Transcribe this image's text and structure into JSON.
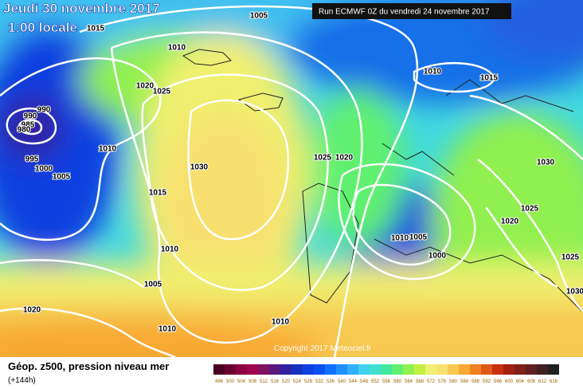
{
  "header": {
    "date": "Jeudi 30 novembre 2017",
    "time": "1:00 locale",
    "run": "Run ECMWF 0Z du vendredi 24 novembre 2017"
  },
  "footer": {
    "title": "Géop. z500, pression niveau mer",
    "lead": "(+144h)",
    "copyright": "Copyright 2017 Meteociel.fr"
  },
  "isobar_labels": [
    1005,
    1015,
    1010,
    1010,
    1015,
    1020,
    1025,
    990,
    990,
    985,
    980,
    995,
    1010,
    1000,
    1005,
    1030,
    1025,
    1020,
    1015,
    1030,
    1025,
    1020,
    1010,
    1005,
    1000,
    1025,
    1010,
    1005,
    1020,
    1010,
    1010,
    1030
  ],
  "legend": {
    "labels": [
      496,
      500,
      504,
      508,
      512,
      516,
      520,
      524,
      528,
      532,
      536,
      540,
      544,
      548,
      552,
      556,
      560,
      564,
      568,
      572,
      576,
      580,
      584,
      588,
      592,
      596,
      600,
      604,
      608,
      612,
      616
    ],
    "colors": [
      "#4a0020",
      "#6a0030",
      "#8a0040",
      "#a00050",
      "#801060",
      "#5a1880",
      "#3020a0",
      "#1830c0",
      "#1040e0",
      "#0a50f0",
      "#1070ff",
      "#2090ff",
      "#30b0ff",
      "#40d0f0",
      "#40e0d0",
      "#40e8a0",
      "#60f070",
      "#90f050",
      "#c0f040",
      "#f0f070",
      "#f8e070",
      "#f8c850",
      "#f8a830",
      "#f08020",
      "#e05818",
      "#c83010",
      "#a02010",
      "#802018",
      "#602020",
      "#402020",
      "#202020"
    ]
  }
}
